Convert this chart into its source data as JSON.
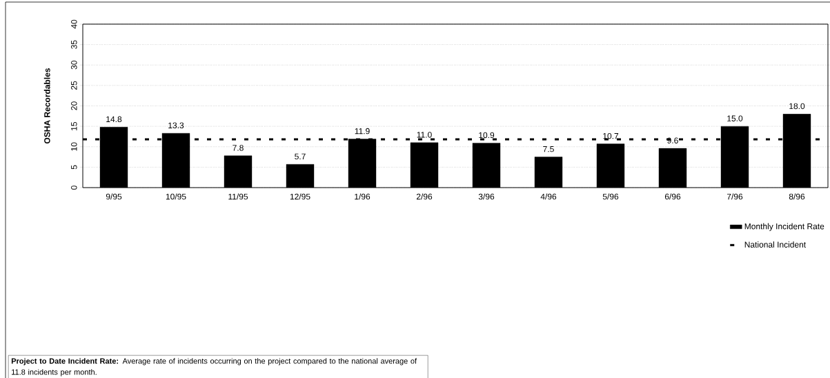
{
  "chart_data": {
    "type": "bar",
    "ylabel": "OSHA Recordables",
    "categories": [
      "9/95",
      "10/95",
      "11/95",
      "12/95",
      "1/96",
      "2/96",
      "3/96",
      "4/96",
      "5/96",
      "6/96",
      "7/96",
      "8/96"
    ],
    "series": [
      {
        "name": "Monthly Incident Rate",
        "color": "#000000",
        "values": [
          14.8,
          13.3,
          7.8,
          5.7,
          11.9,
          11.0,
          10.9,
          7.5,
          10.7,
          9.6,
          15.0,
          18.0
        ],
        "value_labels": [
          "14.8",
          "13.3",
          "7.8",
          "5.7",
          "11.9",
          "11.0",
          "10.9",
          "7.5",
          "10.7",
          "9.6",
          "15.0",
          "18.0"
        ]
      }
    ],
    "ref_lines": [
      {
        "axis": "y",
        "value": 11.8,
        "label": "National Incident",
        "line_style": "dashed",
        "color": "#000000"
      }
    ],
    "ylim": [
      0,
      40
    ],
    "yticks": [
      0,
      5,
      10,
      15,
      20,
      25,
      30,
      35,
      40
    ],
    "grid": "y",
    "legend": "bottom right",
    "annotations": [
      "**Project to Date Incident Rate:** Average rate of incidents occurring on the project compared to the national average of 11.8 incidents per month."
    ]
  }
}
